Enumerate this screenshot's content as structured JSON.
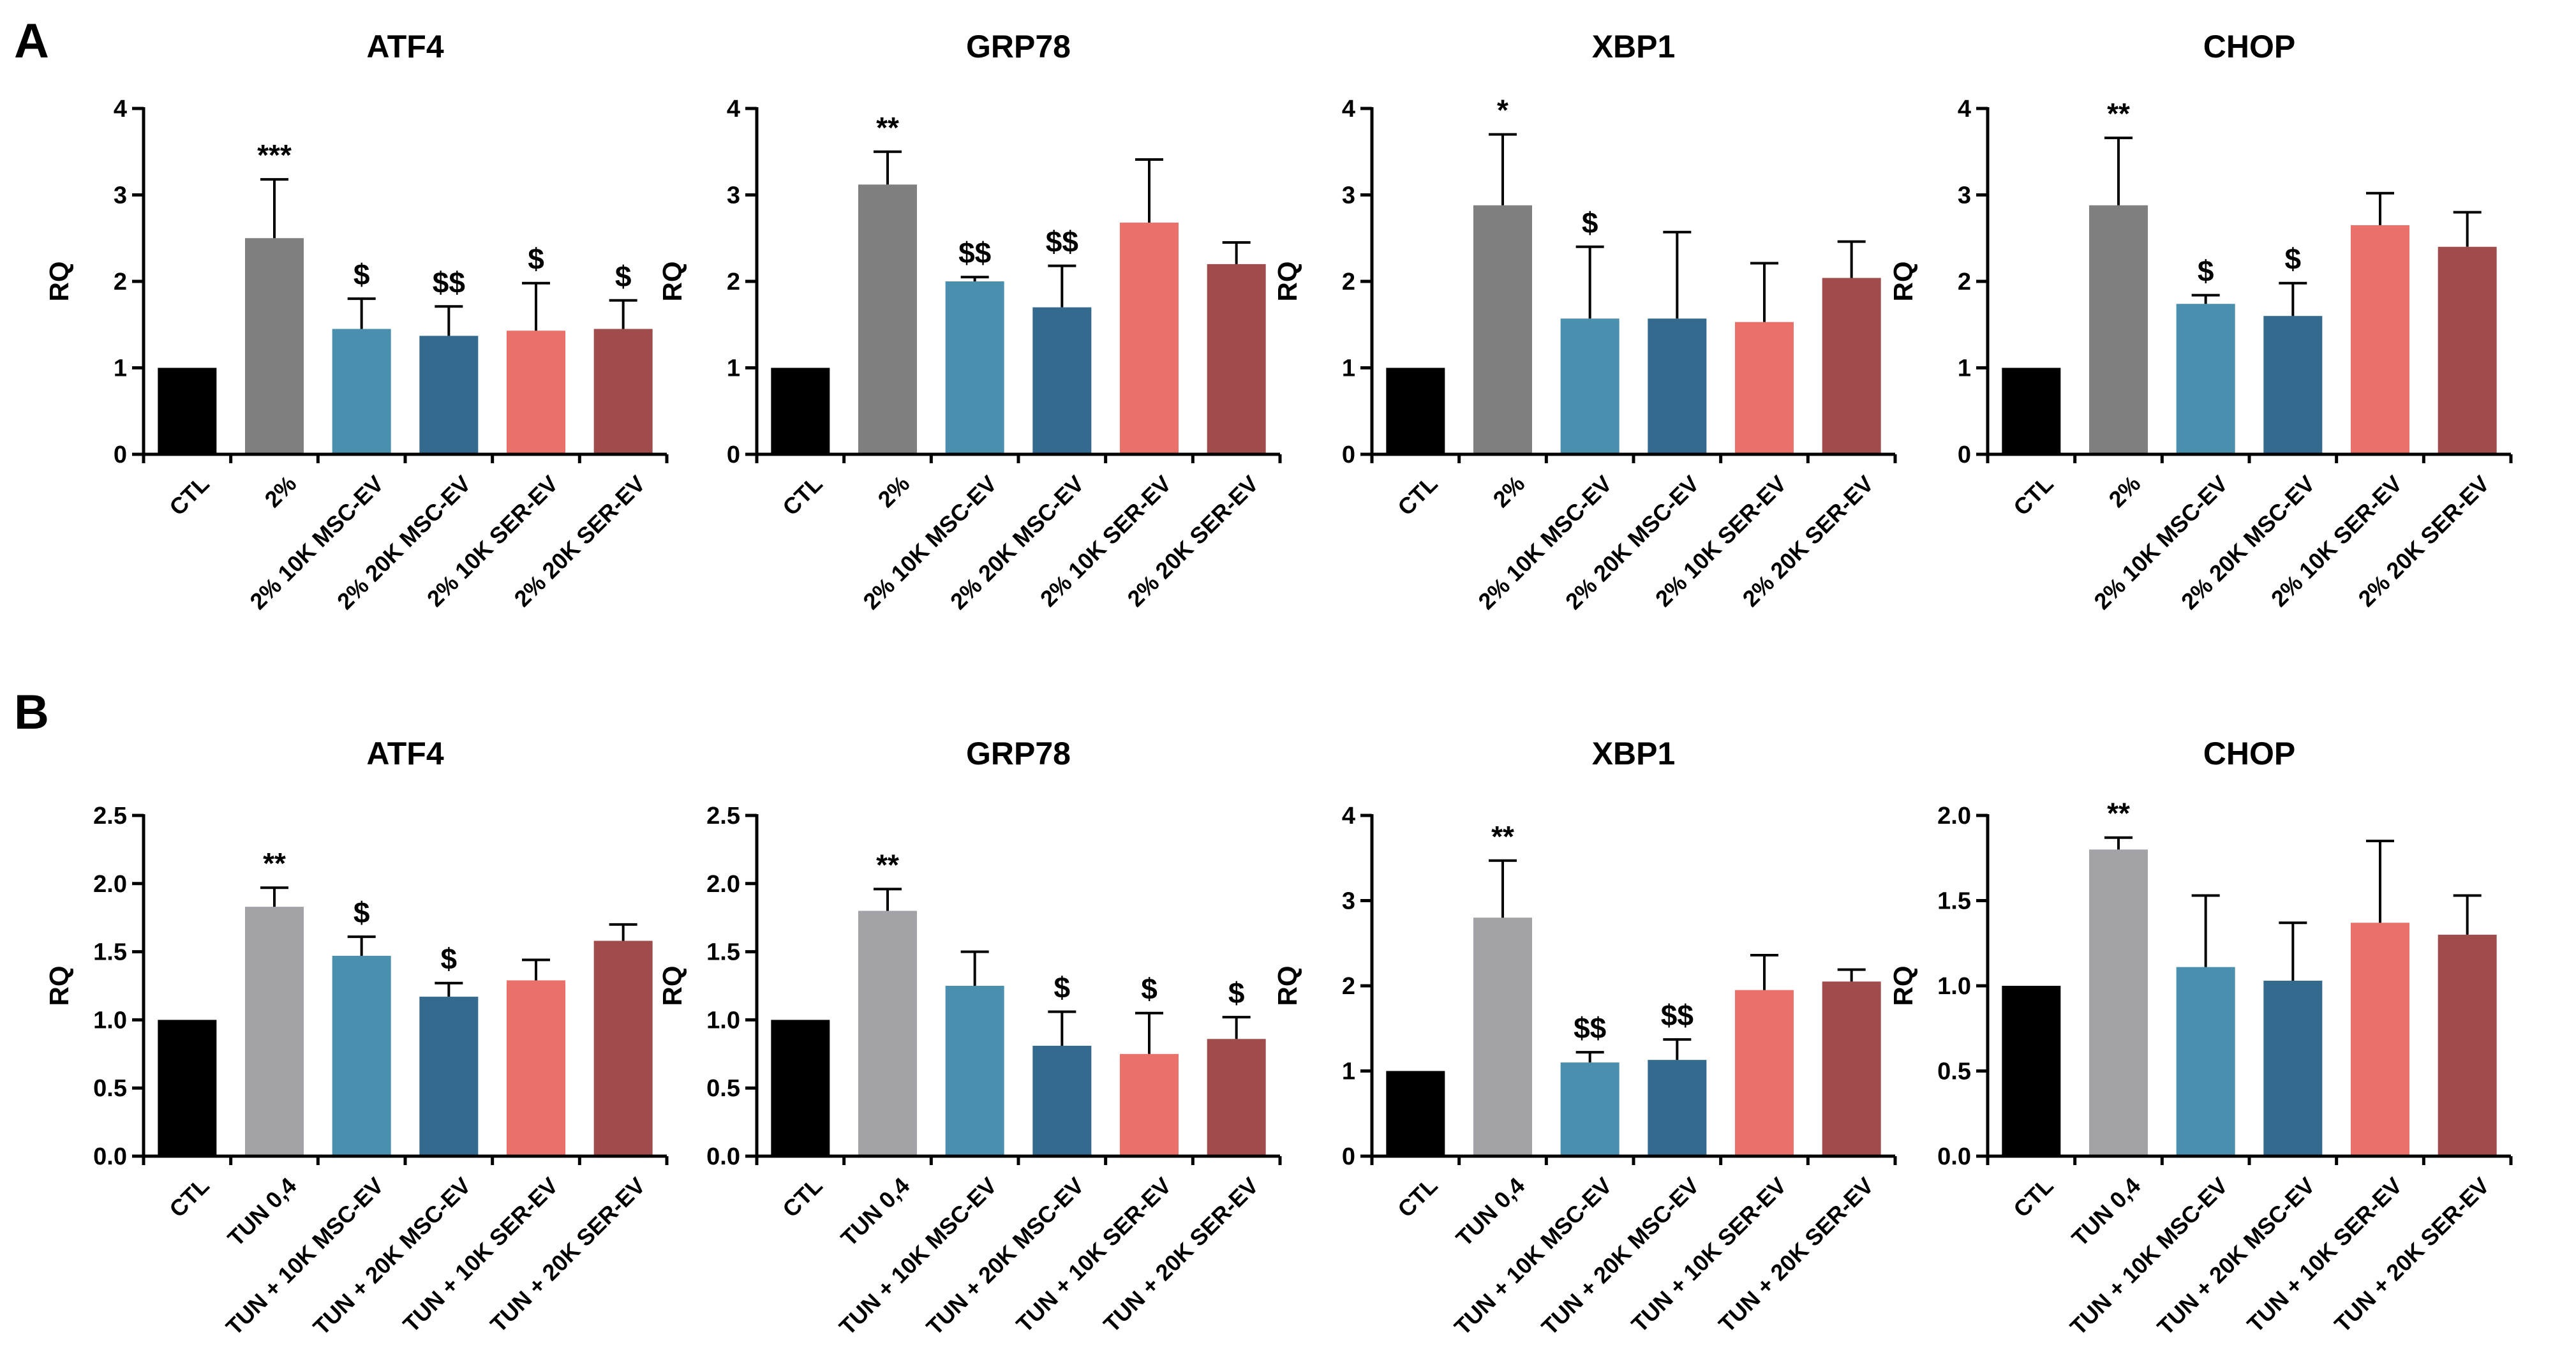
{
  "panels": [
    {
      "letter": "A",
      "categories": [
        "CTL",
        "2%",
        "2% 10K MSC-EV",
        "2% 20K MSC-EV",
        "2% 10K SER-EV",
        "2% 20K SER-EV"
      ]
    },
    {
      "letter": "B",
      "categories": [
        "CTL",
        "TUN 0,4",
        "TUN + 10K MSC-EV",
        "TUN + 20K MSC-EV",
        "TUN + 10K SER-EV",
        "TUN +  20K SER-EV"
      ]
    }
  ],
  "colors": {
    "A": [
      "#000000",
      "#7f7f7f",
      "#4a8fad",
      "#356a8f",
      "#ea706a",
      "#a14c4c"
    ],
    "B": [
      "#000000",
      "#a3a3a7",
      "#4a8fad",
      "#356a8f",
      "#ea706a",
      "#a14c4c"
    ]
  },
  "chart_data": [
    {
      "type": "bar",
      "panel": "A",
      "title": "ATF4",
      "ylabel": "RQ",
      "ylim": [
        0,
        4
      ],
      "yticks": [
        "0",
        "1",
        "2",
        "3",
        "4"
      ],
      "values": [
        1.0,
        2.5,
        1.45,
        1.37,
        1.43,
        1.45
      ],
      "errors": [
        0,
        0.68,
        0.35,
        0.34,
        0.55,
        0.33
      ],
      "annotations": [
        "",
        "***",
        "$",
        "$$",
        "$",
        "$"
      ]
    },
    {
      "type": "bar",
      "panel": "A",
      "title": "GRP78",
      "ylabel": "RQ",
      "ylim": [
        0,
        4
      ],
      "yticks": [
        "0",
        "1",
        "2",
        "3",
        "4"
      ],
      "values": [
        1.0,
        3.12,
        2.0,
        1.7,
        2.68,
        2.2
      ],
      "errors": [
        0,
        0.38,
        0.05,
        0.48,
        0.73,
        0.25
      ],
      "annotations": [
        "",
        "**",
        "$$",
        "$$",
        "",
        ""
      ]
    },
    {
      "type": "bar",
      "panel": "A",
      "title": "XBP1",
      "ylabel": "RQ",
      "ylim": [
        0,
        4
      ],
      "yticks": [
        "0",
        "1",
        "2",
        "3",
        "4"
      ],
      "values": [
        1.0,
        2.88,
        1.57,
        1.57,
        1.53,
        2.04
      ],
      "errors": [
        0,
        0.82,
        0.83,
        1.0,
        0.68,
        0.42
      ],
      "annotations": [
        "",
        "*",
        "$",
        "",
        "",
        ""
      ]
    },
    {
      "type": "bar",
      "panel": "A",
      "title": "CHOP",
      "ylabel": "RQ",
      "ylim": [
        0,
        4
      ],
      "yticks": [
        "0",
        "1",
        "2",
        "3",
        "4"
      ],
      "values": [
        1.0,
        2.88,
        1.74,
        1.6,
        2.65,
        2.4
      ],
      "errors": [
        0,
        0.78,
        0.1,
        0.38,
        0.37,
        0.4
      ],
      "annotations": [
        "",
        "**",
        "$",
        "$",
        "",
        ""
      ]
    },
    {
      "type": "bar",
      "panel": "B",
      "title": "ATF4",
      "ylabel": "RQ",
      "ylim": [
        0,
        2.5
      ],
      "yticks": [
        "0.0",
        "0.5",
        "1.0",
        "1.5",
        "2.0",
        "2.5"
      ],
      "values": [
        1.0,
        1.83,
        1.47,
        1.17,
        1.29,
        1.58
      ],
      "errors": [
        0,
        0.14,
        0.14,
        0.1,
        0.15,
        0.12
      ],
      "annotations": [
        "",
        "**",
        "$",
        "$",
        "",
        ""
      ]
    },
    {
      "type": "bar",
      "panel": "B",
      "title": "GRP78",
      "ylabel": "RQ",
      "ylim": [
        0,
        2.5
      ],
      "yticks": [
        "0.0",
        "0.5",
        "1.0",
        "1.5",
        "2.0",
        "2.5"
      ],
      "values": [
        1.0,
        1.8,
        1.25,
        0.81,
        0.75,
        0.86
      ],
      "errors": [
        0,
        0.16,
        0.25,
        0.25,
        0.3,
        0.16
      ],
      "annotations": [
        "",
        "**",
        "",
        "$",
        "$",
        "$"
      ]
    },
    {
      "type": "bar",
      "panel": "B",
      "title": "XBP1",
      "ylabel": "RQ",
      "ylim": [
        0,
        4
      ],
      "yticks": [
        "0",
        "1",
        "2",
        "3",
        "4"
      ],
      "values": [
        1.0,
        2.8,
        1.1,
        1.13,
        1.95,
        2.05
      ],
      "errors": [
        0,
        0.67,
        0.12,
        0.24,
        0.41,
        0.14
      ],
      "annotations": [
        "",
        "**",
        "$$",
        "$$",
        "",
        ""
      ]
    },
    {
      "type": "bar",
      "panel": "B",
      "title": "CHOP",
      "ylabel": "RQ",
      "ylim": [
        0,
        2
      ],
      "yticks": [
        "0.0",
        "0.5",
        "1.0",
        "1.5",
        "2.0"
      ],
      "values": [
        1.0,
        1.8,
        1.11,
        1.03,
        1.37,
        1.3
      ],
      "errors": [
        0,
        0.07,
        0.42,
        0.34,
        0.48,
        0.23
      ],
      "annotations": [
        "",
        "**",
        "",
        "",
        "",
        ""
      ]
    }
  ]
}
